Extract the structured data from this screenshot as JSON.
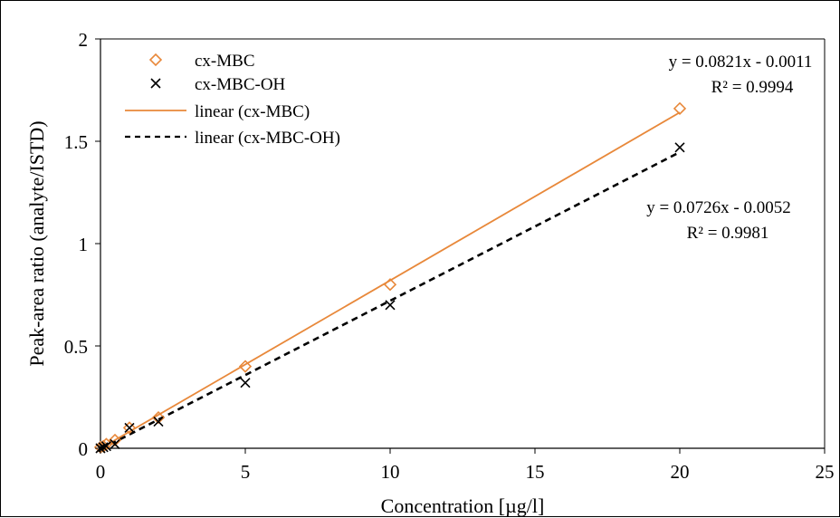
{
  "chart_data": {
    "type": "scatter",
    "title": "",
    "xlabel": "Concentration [µg/l]",
    "ylabel": "Peak-area ratio (analyte/ISTD)",
    "xlim": [
      0,
      25
    ],
    "ylim": [
      0,
      2
    ],
    "x_ticks": [
      0,
      5,
      10,
      15,
      20,
      25
    ],
    "y_ticks": [
      0,
      0.5,
      1,
      1.5,
      2
    ],
    "x_tick_labels": [
      "0",
      "5",
      "10",
      "15",
      "20",
      "25"
    ],
    "y_tick_labels": [
      "0",
      "0.5",
      "1",
      "1.5",
      "2"
    ],
    "grid": false,
    "legend_position": "top-left",
    "series": [
      {
        "name": "cx-MBC",
        "marker": "diamond",
        "color": "#E8883A",
        "x": [
          0,
          0.1,
          0.2,
          0.5,
          1,
          2,
          5,
          10,
          20
        ],
        "y": [
          0.005,
          0.01,
          0.02,
          0.04,
          0.1,
          0.15,
          0.4,
          0.8,
          1.66
        ]
      },
      {
        "name": "cx-MBC-OH",
        "marker": "x",
        "color": "#000000",
        "x": [
          0,
          0.1,
          0.2,
          0.5,
          1,
          2,
          5,
          10,
          20
        ],
        "y": [
          0.0,
          0.005,
          0.01,
          0.02,
          0.1,
          0.13,
          0.32,
          0.7,
          1.47
        ]
      }
    ],
    "trendlines": [
      {
        "name": "linear (cx-MBC)",
        "style": "solid",
        "color": "#E8883A",
        "slope": 0.0821,
        "intercept": -0.0011,
        "x_range": [
          0,
          20
        ],
        "equation": "y = 0.0821x  - 0.0011",
        "r2": "R² = 0.9994"
      },
      {
        "name": "linear (cx-MBC-OH)",
        "style": "dashed",
        "color": "#000000",
        "slope": 0.0726,
        "intercept": -0.0052,
        "x_range": [
          0,
          20
        ],
        "equation": "y = 0.0726x  - 0.0052",
        "r2": "R² = 0.9981"
      }
    ]
  }
}
